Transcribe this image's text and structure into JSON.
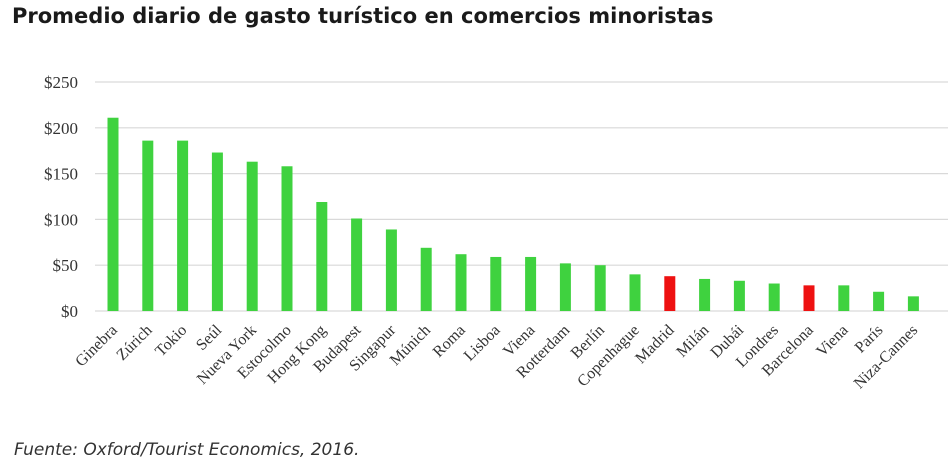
{
  "title": "Promedio diario de gasto turístico en comercios minoristas",
  "source": "Fuente: Oxford/Tourist Economics, 2016.",
  "colors": {
    "default": "#3fd23f",
    "highlight": "#ee1111",
    "grid": "#d9d9d9"
  },
  "chart_data": {
    "type": "bar",
    "title": "Promedio diario de gasto turístico en comercios minoristas",
    "xlabel": "",
    "ylabel": "",
    "ylim": [
      0,
      250
    ],
    "yticks": [
      0,
      50,
      100,
      150,
      200,
      250
    ],
    "ytick_labels": [
      "$0",
      "$50",
      "$100",
      "$150",
      "$200",
      "$250"
    ],
    "grid": true,
    "legend": "none",
    "categories": [
      "Ginebra",
      "Zúrich",
      "Tokio",
      "Seúl",
      "Nueva York",
      "Estocolmo",
      "Hong Kong",
      "Budapest",
      "Singapur",
      "Múnich",
      "Roma",
      "Lisboa",
      "Viena",
      "Rotterdam",
      "Berlín",
      "Copenhague",
      "Madrid",
      "Milán",
      "Dubái",
      "Londres",
      "Barcelona",
      "Viena",
      "París",
      "Niza-Cannes"
    ],
    "values": [
      211,
      186,
      186,
      173,
      163,
      158,
      119,
      101,
      89,
      69,
      62,
      59,
      59,
      52,
      50,
      40,
      38,
      35,
      33,
      30,
      28,
      28,
      21,
      16
    ],
    "highlighted": [
      "Madrid",
      "Barcelona"
    ]
  }
}
